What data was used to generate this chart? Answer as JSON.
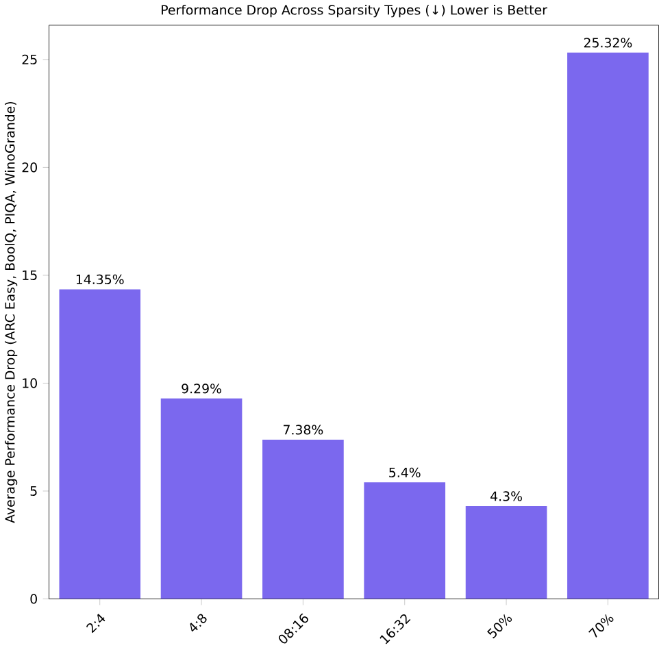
{
  "chart_data": {
    "type": "bar",
    "title": "Performance Drop Across Sparsity Types (↓) Lower is Better",
    "ylabel": "Average Performance Drop (ARC Easy, BoolQ, PIQA, WinoGrande)",
    "categories": [
      "2:4",
      "4:8",
      "08:16",
      "16:32",
      "50%",
      "70%"
    ],
    "values": [
      14.35,
      9.29,
      7.38,
      5.4,
      4.3,
      25.32
    ],
    "value_labels": [
      "14.35%",
      "9.29%",
      "7.38%",
      "5.4%",
      "4.3%",
      "25.32%"
    ],
    "color": "#7b68ee",
    "ylim": [
      0,
      26.59
    ],
    "yticks": [
      0,
      5,
      10,
      15,
      20,
      25
    ],
    "grid": false
  }
}
